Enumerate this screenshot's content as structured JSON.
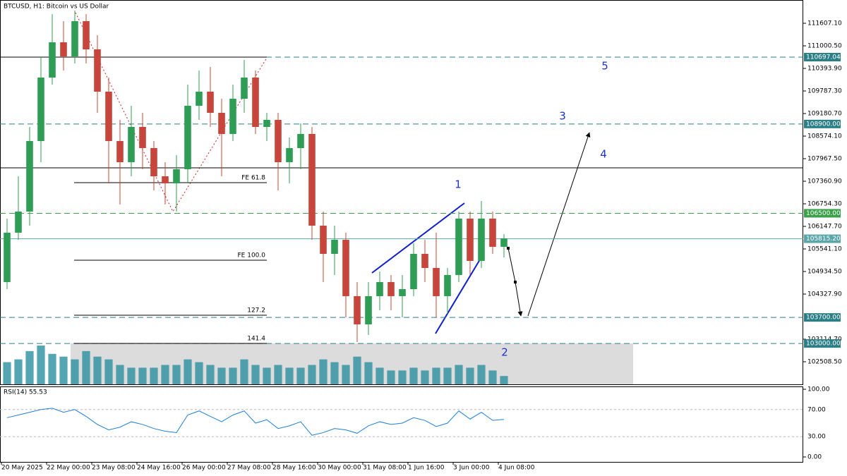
{
  "chart_data": {
    "type": "candlestick",
    "title": "BTCUSD, H1:  Bitcoin vs US Dollar",
    "up_color": "#2e9e55",
    "down_color": "#c8453b",
    "open": [
      104651,
      105978,
      106546,
      108442,
      110148,
      111096,
      110717,
      111664,
      110906,
      109769,
      108442,
      107873,
      108821,
      108252,
      107494,
      107305,
      107684,
      109390,
      109769,
      109200,
      108632,
      109579,
      110148,
      108821,
      109011,
      107873,
      108252,
      108632,
      106167,
      105409,
      105788,
      104272,
      103514,
      104272,
      104651,
      104272,
      104461,
      105409,
      105030,
      104272,
      104841,
      106357,
      105220,
      106357,
      105599
    ],
    "high": [
      106357,
      107494,
      108821,
      110717,
      111854,
      111664,
      111949,
      111854,
      111285,
      110148,
      109011,
      109390,
      109200,
      108442,
      107873,
      108063,
      109958,
      110337,
      110432,
      109579,
      109958,
      110622,
      110337,
      109200,
      109200,
      108537,
      108916,
      108821,
      106546,
      106167,
      105978,
      104651,
      104651,
      104935,
      104841,
      104841,
      105694,
      105788,
      105978,
      105030,
      106546,
      106546,
      106831,
      106546,
      105940
    ],
    "low": [
      104461,
      105788,
      106167,
      107873,
      109958,
      110337,
      110527,
      110527,
      109200,
      107305,
      106736,
      107494,
      107684,
      107115,
      106736,
      106546,
      107305,
      109011,
      108821,
      107494,
      108442,
      109200,
      108632,
      108442,
      107115,
      107305,
      107684,
      105788,
      104651,
      104841,
      103703,
      103040,
      103229,
      103893,
      103893,
      103703,
      104272,
      104651,
      103703,
      103798,
      104651,
      104841,
      105030,
      105409,
      105314
    ],
    "close": [
      105978,
      106546,
      108442,
      110148,
      111096,
      110717,
      111664,
      110906,
      109769,
      108442,
      107873,
      108821,
      108252,
      107494,
      107305,
      107684,
      109390,
      109769,
      109200,
      108632,
      109579,
      110148,
      108821,
      109011,
      107873,
      108252,
      108632,
      106167,
      105409,
      105788,
      104272,
      103514,
      104272,
      104651,
      104272,
      104461,
      105409,
      105030,
      104272,
      104841,
      106357,
      105220,
      106357,
      105599,
      105826
    ],
    "volume": [
      40,
      45,
      60,
      70,
      55,
      50,
      45,
      60,
      50,
      45,
      35,
      30,
      30,
      30,
      35,
      35,
      45,
      40,
      35,
      30,
      30,
      45,
      35,
      30,
      35,
      30,
      30,
      35,
      45,
      40,
      35,
      50,
      40,
      30,
      25,
      25,
      30,
      25,
      30,
      30,
      35,
      30,
      35,
      25,
      15
    ],
    "volume_color": "#2a8fa0",
    "xlim": [
      -0.5,
      70.5
    ],
    "ylim": [
      101902,
      112233
    ],
    "yticks": [
      {
        "value": 111607.1,
        "label": "111607.10"
      },
      {
        "value": 111000.5,
        "label": "111000.50"
      },
      {
        "value": 110393.9,
        "label": "110393.90"
      },
      {
        "value": 109787.3,
        "label": "109787.30"
      },
      {
        "value": 109180.7,
        "label": "109180.70"
      },
      {
        "value": 108574.1,
        "label": "108574.10"
      },
      {
        "value": 107967.5,
        "label": "107967.50"
      },
      {
        "value": 107360.9,
        "label": "107360.90"
      },
      {
        "value": 106754.3,
        "label": "106754.30"
      },
      {
        "value": 106147.7,
        "label": "106147.70"
      },
      {
        "value": 105541.1,
        "label": "105541.10"
      },
      {
        "value": 104934.5,
        "label": "104934.50"
      },
      {
        "value": 104327.9,
        "label": "104327.90"
      },
      {
        "value": 103114.7,
        "label": "103114.70"
      },
      {
        "value": 102508.5,
        "label": "102508.50"
      }
    ],
    "xticks": [
      {
        "value": -0.5,
        "label": "20 May 2025"
      },
      {
        "value": 3.5,
        "label": "22 May 00:00"
      },
      {
        "value": 7.5,
        "label": "23 May 08:00"
      },
      {
        "value": 11.5,
        "label": "24 May 16:00"
      },
      {
        "value": 15.5,
        "label": "26 May 00:00"
      },
      {
        "value": 19.5,
        "label": "27 May 08:00"
      },
      {
        "value": 23.5,
        "label": "28 May 16:00"
      },
      {
        "value": 27.5,
        "label": "30 May 00:00"
      },
      {
        "value": 31.5,
        "label": "31 May 08:00"
      },
      {
        "value": 35.5,
        "label": "1 Jun 16:00"
      },
      {
        "value": 39.5,
        "label": "3 Jun 00:00"
      },
      {
        "value": 43.5,
        "label": "4 Jun 08:00"
      }
    ],
    "levels": [
      {
        "value": 110697.04,
        "label": "110697.04",
        "color": "#2a7f86",
        "style": "dashed"
      },
      {
        "value": 108900,
        "label": "108900.00",
        "color": "#2a7f86",
        "style": "dashed"
      },
      {
        "value": 107722,
        "color": "#000000",
        "style": "solid"
      },
      {
        "value": 106500,
        "label": "106500.00",
        "color": "#3aa04a",
        "style": "dashed"
      },
      {
        "value": 105815.2,
        "label": "105815.20",
        "color": "#5aa6a8",
        "style": "solid"
      },
      {
        "value": 103700,
        "label": "103700.00",
        "color": "#2a7f86",
        "style": "dashed"
      },
      {
        "value": 103000,
        "label": "103000.00",
        "color": "#2a7f86",
        "style": "dashed"
      }
    ],
    "fib_levels": [
      {
        "label": "FE 61.8",
        "value": 107324
      },
      {
        "label": "FE 100.0",
        "value": 105239
      },
      {
        "label": "127.2",
        "value": 103760
      },
      {
        "label": "141.4",
        "value": 103002
      }
    ],
    "wave_labels": [
      "1",
      "2",
      "3",
      "4",
      "5"
    ],
    "rsi": {
      "title": "RSI(14) 55.53",
      "color": "#1e7fd8",
      "values": [
        58,
        62,
        66,
        70,
        72,
        66,
        70,
        60,
        48,
        40,
        44,
        52,
        48,
        42,
        38,
        36,
        62,
        68,
        60,
        52,
        62,
        68,
        50,
        55,
        42,
        46,
        52,
        32,
        36,
        42,
        40,
        35,
        46,
        52,
        48,
        50,
        58,
        54,
        45,
        50,
        68,
        56,
        66,
        54,
        55.53
      ],
      "ylim": [
        0,
        100
      ],
      "yticks": [
        {
          "value": 100,
          "label": "100.00"
        },
        {
          "value": 70,
          "label": "70.00"
        },
        {
          "value": 30,
          "label": "30.00"
        },
        {
          "value": 0,
          "label": "0.00"
        }
      ]
    }
  }
}
